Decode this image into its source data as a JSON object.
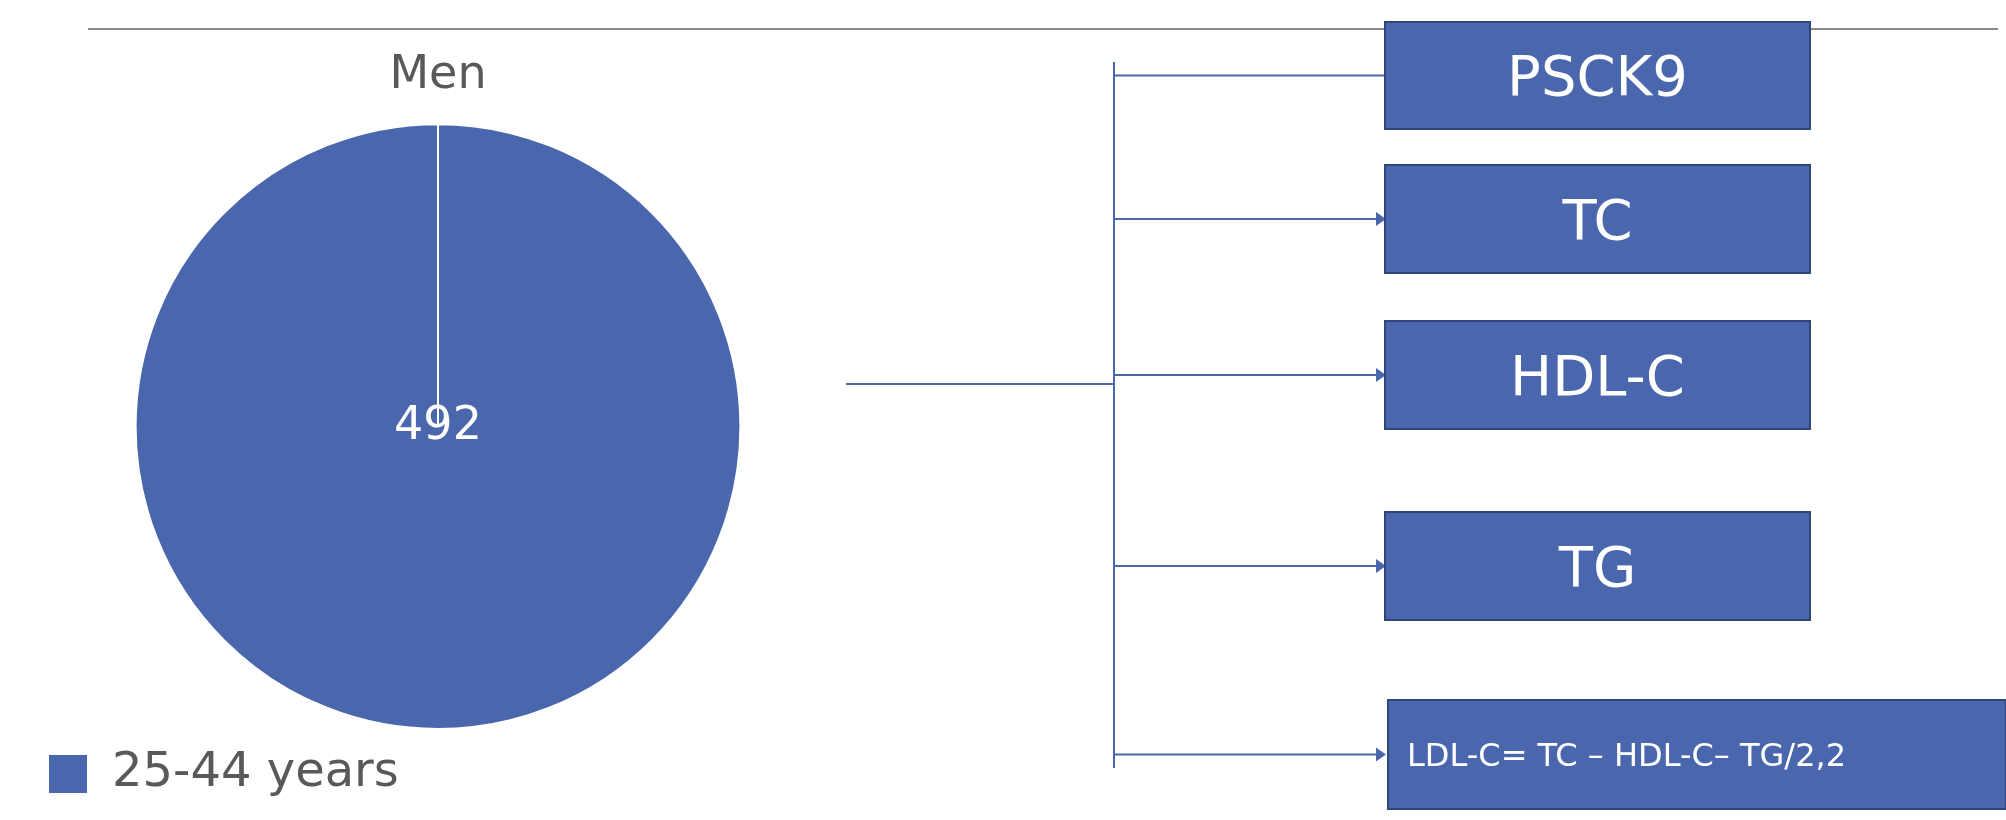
{
  "chart_data": {
    "type": "pie",
    "title": "Men",
    "categories": [
      "25-44 years"
    ],
    "values": [
      492
    ],
    "colors": [
      "#4a67ad"
    ],
    "data_labels": true,
    "legend": "bottom left",
    "annotations": [
      "PSCK9",
      "TC",
      "HDL-C",
      "TG",
      "LDL-C= TC – HDL-C– TG/2,2"
    ]
  }
}
